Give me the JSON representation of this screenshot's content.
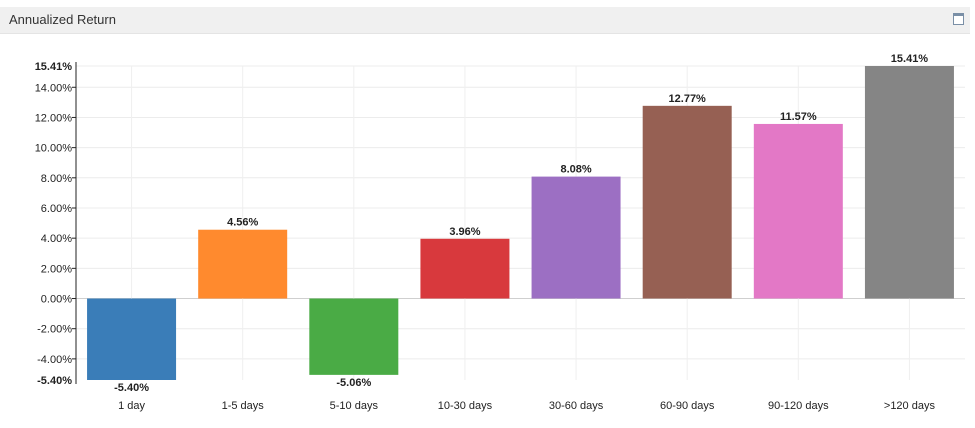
{
  "panel": {
    "title": "Annualized Return",
    "maximize_icon": "window-maximize-icon"
  },
  "chart_data": {
    "type": "bar",
    "title": "Annualized Return",
    "xlabel": "",
    "ylabel": "",
    "ylim": [
      -5.4,
      15.41
    ],
    "grid": true,
    "legend": "none",
    "categories": [
      "1 day",
      "1-5 days",
      "5-10 days",
      "10-30 days",
      "30-60 days",
      "60-90 days",
      "90-120 days",
      ">120 days"
    ],
    "values": [
      -5.4,
      4.56,
      -5.06,
      3.96,
      8.08,
      12.77,
      11.57,
      15.41
    ],
    "value_labels": [
      "-5.40%",
      "4.56%",
      "-5.06%",
      "3.96%",
      "8.08%",
      "12.77%",
      "11.57%",
      "15.41%"
    ],
    "colors": [
      "#3a7db8",
      "#ff8a2e",
      "#4aab45",
      "#d8393d",
      "#9c6fc3",
      "#966053",
      "#e378c6",
      "#858585"
    ],
    "y_ticks": [
      -4,
      -2,
      0,
      2,
      4,
      6,
      8,
      10,
      12,
      14
    ],
    "y_tick_labels": [
      "-4.00%",
      "-2.00%",
      "0.00%",
      "2.00%",
      "4.00%",
      "6.00%",
      "8.00%",
      "10.00%",
      "12.00%",
      "14.00%"
    ],
    "y_extreme_labels": {
      "max": "15.41%",
      "min": "-5.40%"
    }
  }
}
